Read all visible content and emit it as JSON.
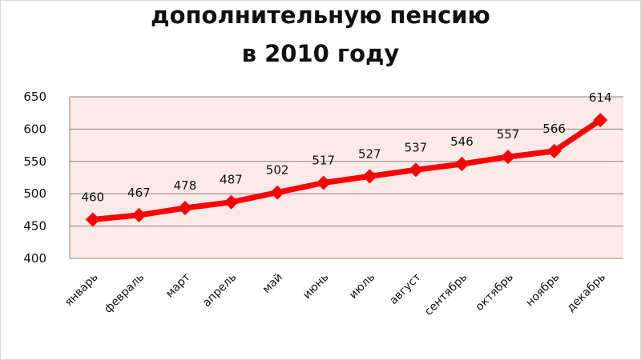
{
  "chart_data": {
    "type": "line",
    "title_lines": [
      "дополнительную пенсию",
      "в 2010 году"
    ],
    "categories": [
      "январь",
      "февраль",
      "март",
      "апрель",
      "май",
      "июнь",
      "июль",
      "август",
      "сентябрь",
      "октябрь",
      "ноябрь",
      "декабрь"
    ],
    "values": [
      460,
      467,
      478,
      487,
      502,
      517,
      527,
      537,
      546,
      557,
      566,
      614
    ],
    "ylim": [
      400,
      650
    ],
    "yticks": [
      400,
      450,
      500,
      550,
      600,
      650
    ],
    "grid": true,
    "legend": "none",
    "colors": {
      "series": "#ff0000",
      "plot_background": "#fde9e7",
      "grid": "#878787"
    }
  }
}
